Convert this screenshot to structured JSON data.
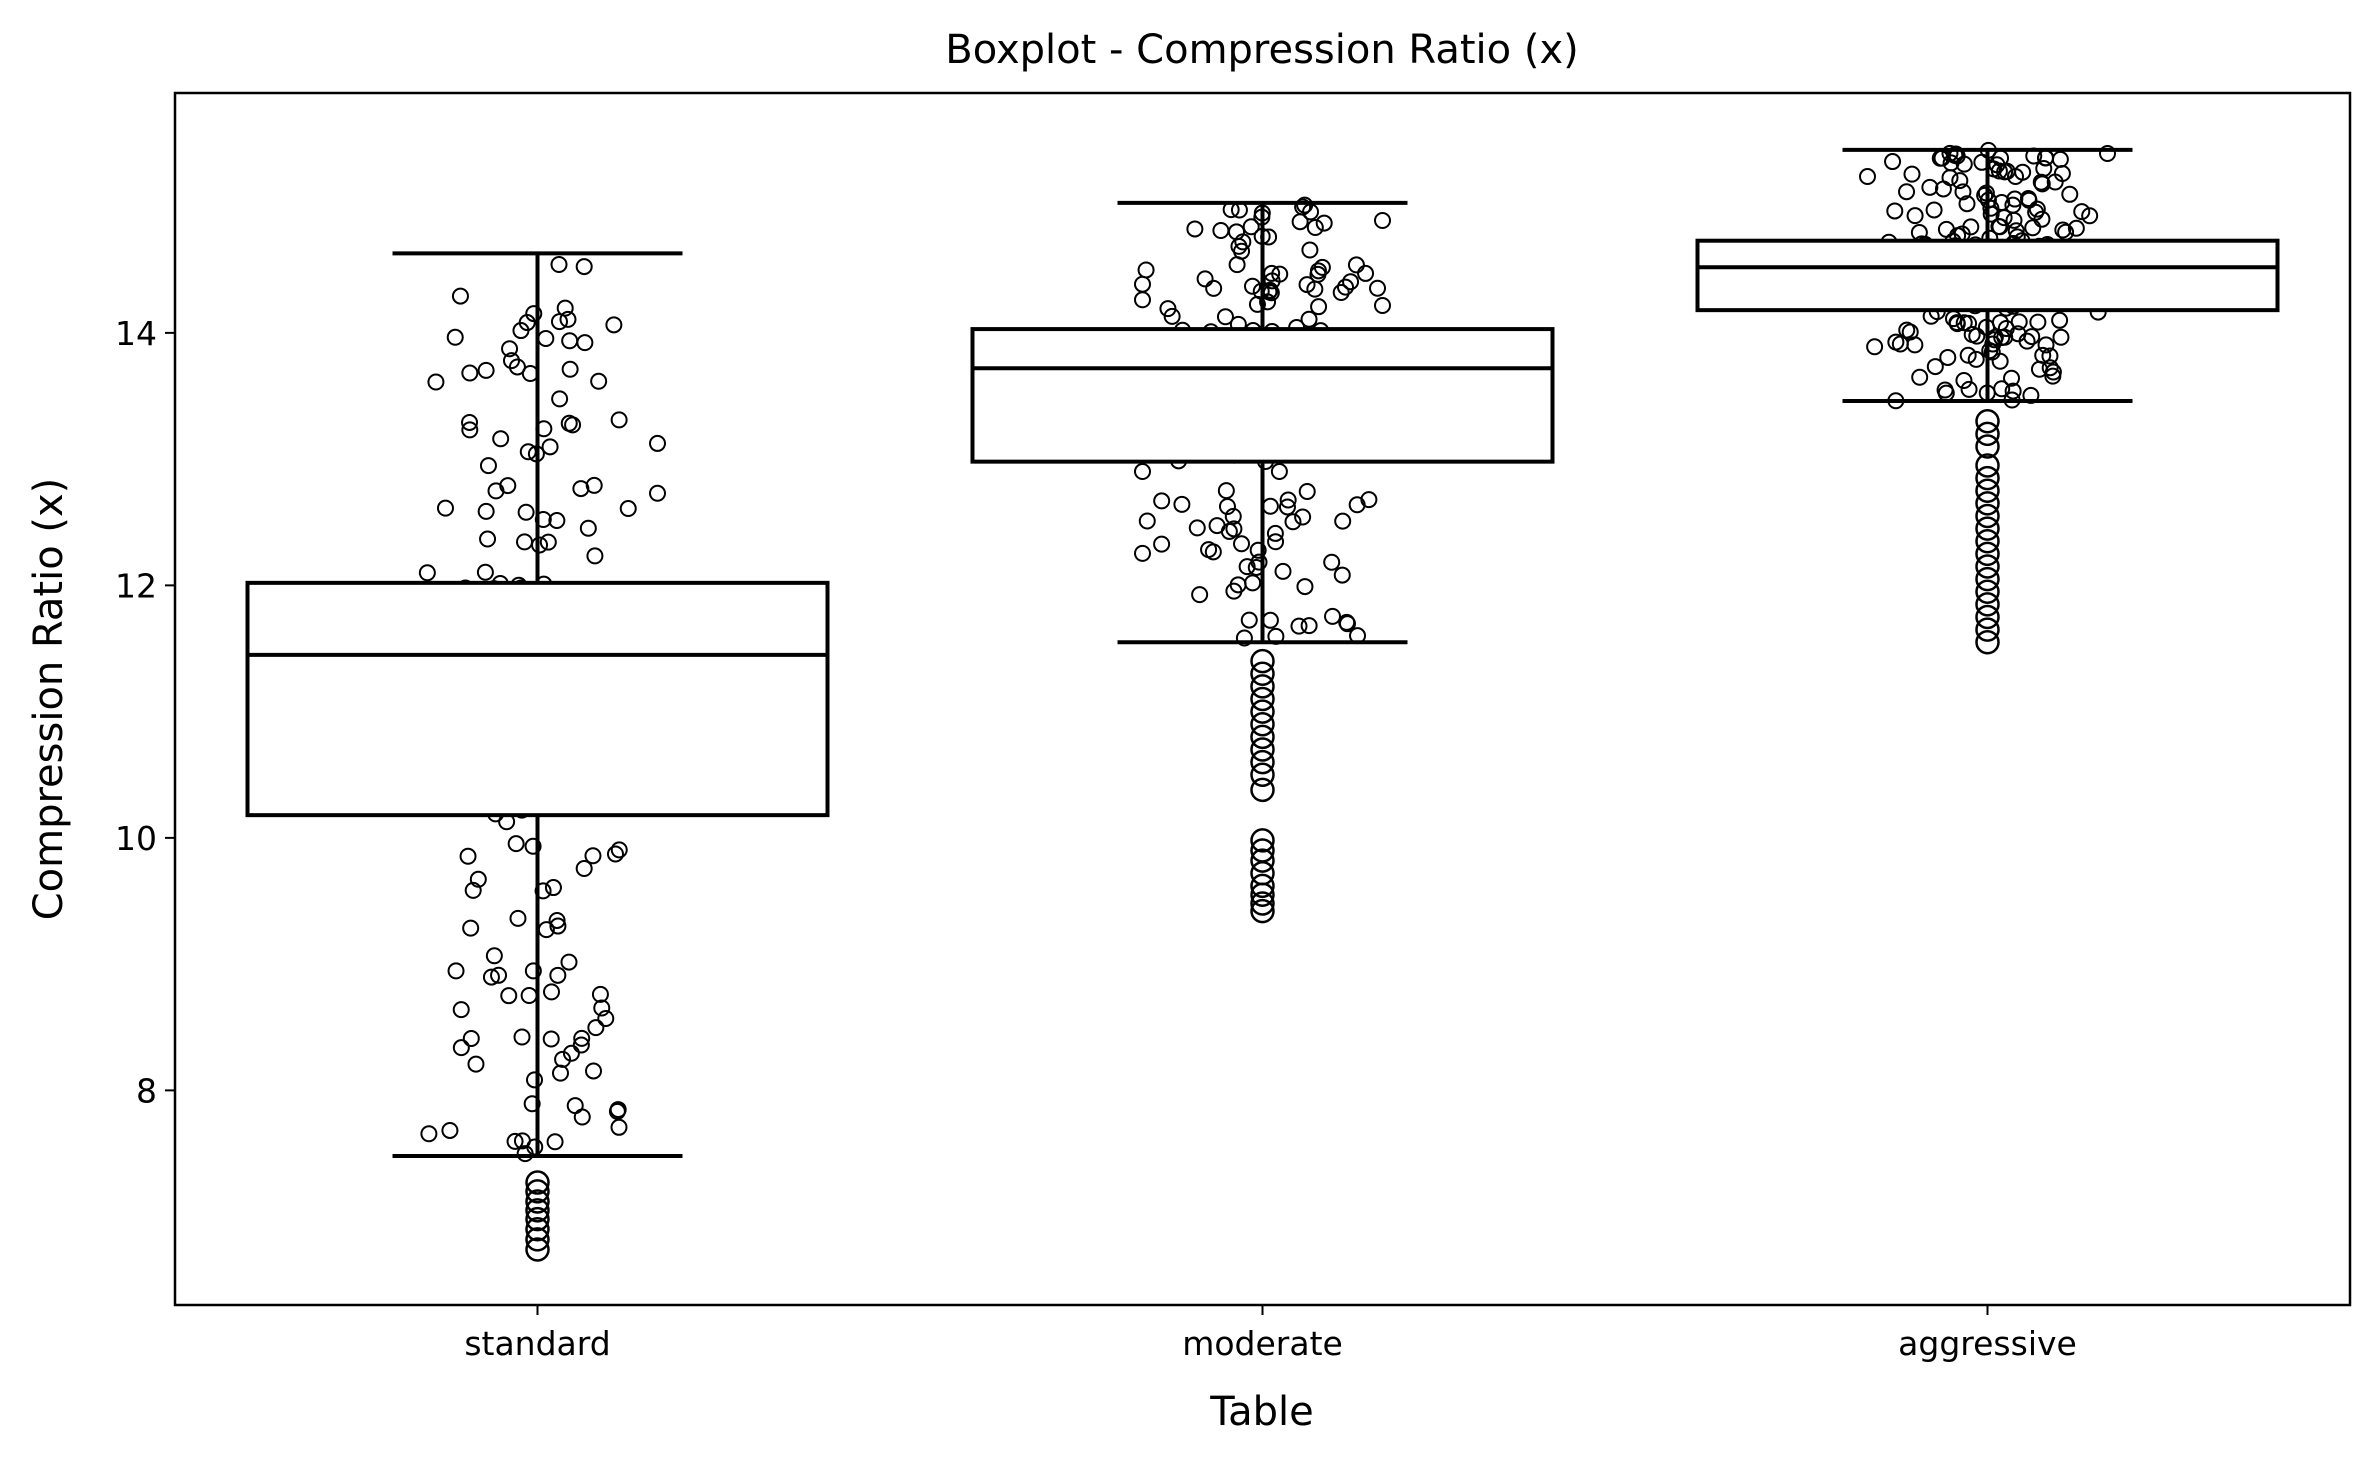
{
  "chart_data": {
    "type": "boxplot",
    "title": "Boxplot - Compression Ratio (x)",
    "xlabel": "Table",
    "ylabel": "Compression Ratio (x)",
    "categories": [
      "standard",
      "moderate",
      "aggressive"
    ],
    "yticks": [
      "8",
      "10",
      "12",
      "14"
    ],
    "ylim": [
      6.3,
      15.9
    ],
    "grid": false,
    "boxes": [
      {
        "category": "standard",
        "whisker_low": 7.48,
        "q1": 10.18,
        "median": 11.45,
        "q3": 12.02,
        "whisker_high": 14.63
      },
      {
        "category": "moderate",
        "whisker_low": 11.55,
        "q1": 12.98,
        "median": 13.72,
        "q3": 14.03,
        "whisker_high": 15.03
      },
      {
        "category": "aggressive",
        "whisker_low": 13.46,
        "q1": 14.18,
        "median": 14.52,
        "q3": 14.73,
        "whisker_high": 15.45
      }
    ],
    "outliers": [
      {
        "category": "standard",
        "values": [
          7.27,
          7.2,
          7.12,
          7.05,
          6.98,
          6.9,
          6.82,
          6.74
        ]
      },
      {
        "category": "moderate",
        "values": [
          11.4,
          11.3,
          11.2,
          11.1,
          11.0,
          10.9,
          10.8,
          10.7,
          10.6,
          10.5,
          10.38,
          9.98,
          9.9,
          9.82,
          9.72,
          9.62,
          9.55,
          9.48,
          9.42
        ]
      },
      {
        "category": "aggressive",
        "values": [
          13.3,
          13.2,
          13.1,
          12.95,
          12.85,
          12.75,
          12.65,
          12.55,
          12.45,
          12.35,
          12.25,
          12.15,
          12.05,
          11.95,
          11.85,
          11.75,
          11.65,
          11.55
        ]
      }
    ]
  }
}
